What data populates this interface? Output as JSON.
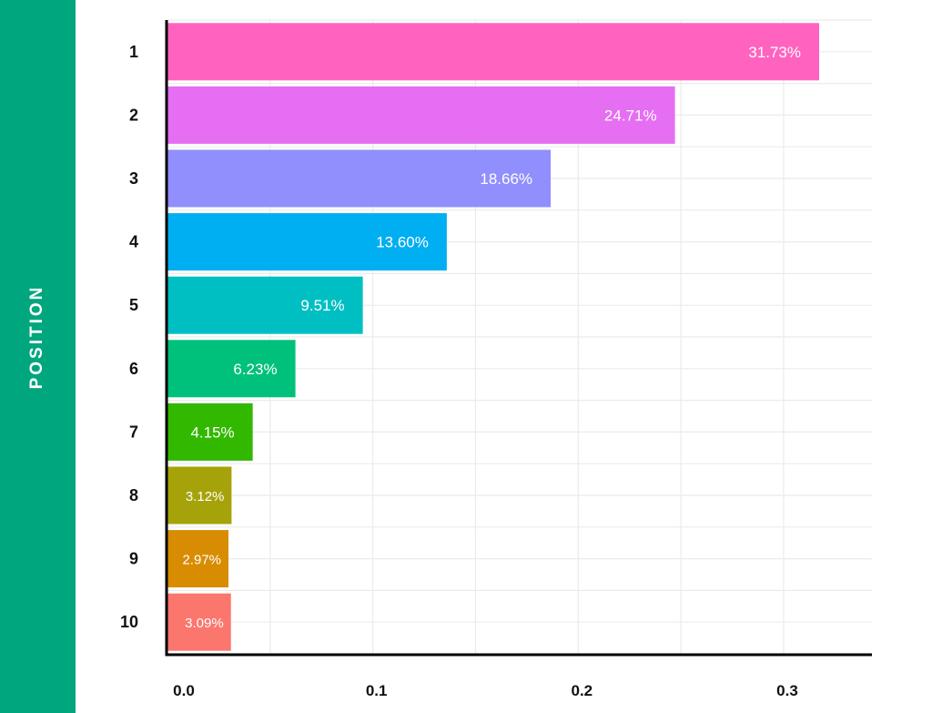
{
  "y_axis_label": "POSITION",
  "chart_data": {
    "type": "bar",
    "orientation": "horizontal",
    "categories": [
      "1",
      "2",
      "3",
      "4",
      "5",
      "6",
      "7",
      "8",
      "9",
      "10"
    ],
    "values": [
      0.3173,
      0.2471,
      0.1866,
      0.136,
      0.0951,
      0.0623,
      0.0415,
      0.0312,
      0.0297,
      0.0309
    ],
    "data_labels": [
      "31.73%",
      "24.71%",
      "18.66%",
      "13.60%",
      "9.51%",
      "6.23%",
      "4.15%",
      "3.12%",
      "2.97%",
      "3.09%"
    ],
    "colors": [
      "#ff63bf",
      "#e56ef2",
      "#918ffd",
      "#00aef2",
      "#00bfc3",
      "#00c17c",
      "#33b800",
      "#a6a30a",
      "#d88c02",
      "#fb766d"
    ],
    "x_ticks": [
      "0.0",
      "0.1",
      "0.2",
      "0.3"
    ],
    "x_tick_values": [
      0,
      0.1,
      0.2,
      0.3
    ],
    "xlim": [
      0,
      0.343
    ],
    "xlabel": "",
    "ylabel": "POSITION",
    "grid": true,
    "legend": "none"
  }
}
